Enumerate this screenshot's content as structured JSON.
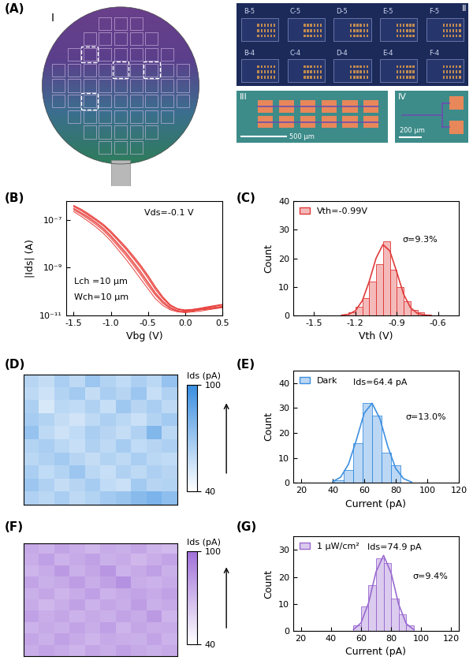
{
  "figure": {
    "panel_labels": [
      "(A)",
      "(B)",
      "(C)",
      "(D)",
      "(E)",
      "(F)",
      "(G)"
    ]
  },
  "photos": {
    "wafer": {
      "label": "I"
    },
    "chips": {
      "label": "II",
      "chip_labels": [
        "B-5",
        "C-5",
        "D-5",
        "E-5",
        "F-5",
        "B-4",
        "C-4",
        "D-4",
        "E-4",
        "F-4"
      ]
    },
    "array": {
      "label": "III",
      "scale_bar": "500 µm"
    },
    "device": {
      "label": "IV",
      "scale_bar": "200 µm"
    }
  },
  "chart_data": [
    {
      "type": "line",
      "log": "y",
      "x": [
        -1.5,
        -1.4,
        -1.3,
        -1.2,
        -1.1,
        -1.0,
        -0.9,
        -0.8,
        -0.7,
        -0.6,
        -0.5,
        -0.4,
        -0.3,
        -0.2,
        -0.1,
        0.0,
        0.1,
        0.2,
        0.3,
        0.4,
        0.5
      ],
      "series": [
        {
          "color": "#e8403c",
          "values": [
            3e-07,
            2e-07,
            1.3e-07,
            8e-08,
            4.5e-08,
            2.2e-08,
            1e-08,
            4.5e-09,
            1.8e-09,
            7e-10,
            2.5e-10,
            9e-11,
            4e-11,
            2.2e-11,
            1.6e-11,
            1.5e-11,
            1.6e-11,
            1.8e-11,
            2e-11,
            2.2e-11,
            2.4e-11
          ]
        },
        {
          "color": "#e8403c",
          "values": [
            4e-07,
            2.8e-07,
            1.8e-07,
            1.1e-07,
            6.5e-08,
            3.4e-08,
            1.6e-08,
            7.5e-09,
            3.2e-09,
            1.3e-09,
            4.8e-10,
            1.6e-10,
            6e-11,
            2.8e-11,
            1.9e-11,
            1.7e-11,
            1.8e-11,
            2e-11,
            2.3e-11,
            2.6e-11,
            2.9e-11
          ]
        },
        {
          "color": "#e8403c",
          "values": [
            2.2e-07,
            1.4e-07,
            8.5e-08,
            5e-08,
            2.7e-08,
            1.3e-08,
            5.5e-09,
            2.3e-09,
            9e-10,
            3.4e-10,
            1.3e-10,
            5e-11,
            2.6e-11,
            1.7e-11,
            1.4e-11,
            1.3e-11,
            1.4e-11,
            1.5e-11,
            1.7e-11,
            1.9e-11,
            2.1e-11
          ]
        },
        {
          "color": "#e8403c",
          "values": [
            3.5e-07,
            2.4e-07,
            1.5e-07,
            9.5e-08,
            5.5e-08,
            2.8e-08,
            1.3e-08,
            6e-09,
            2.5e-09,
            1e-09,
            3.6e-10,
            1.2e-10,
            5e-11,
            2.5e-11,
            1.8e-11,
            1.6e-11,
            1.7e-11,
            1.9e-11,
            2.1e-11,
            2.4e-11,
            2.7e-11
          ]
        },
        {
          "color": "#e8403c",
          "values": [
            2.6e-07,
            1.7e-07,
            1.05e-07,
            6.3e-08,
            3.5e-08,
            1.7e-08,
            7.5e-09,
            3.3e-09,
            1.3e-09,
            5e-10,
            1.8e-10,
            7e-11,
            3.2e-11,
            1.9e-11,
            1.5e-11,
            1.4e-11,
            1.5e-11,
            1.7e-11,
            1.8e-11,
            2e-11,
            2.2e-11
          ]
        },
        {
          "color": "#e8403c",
          "values": [
            3.8e-07,
            2.6e-07,
            1.65e-07,
            1e-07,
            6e-08,
            3.1e-08,
            1.45e-08,
            6.7e-09,
            2.8e-09,
            1.15e-09,
            4.2e-10,
            1.4e-10,
            5.5e-11,
            2.6e-11,
            1.85e-11,
            1.65e-11,
            1.75e-11,
            1.95e-11,
            2.2e-11,
            2.5e-11,
            2.8e-11
          ]
        },
        {
          "color": "#e8403c",
          "values": [
            2.9e-07,
            1.9e-07,
            1.2e-07,
            7.2e-08,
            4e-08,
            2e-08,
            8.8e-09,
            3.9e-09,
            1.55e-09,
            6e-10,
            2.2e-10,
            8e-11,
            3.6e-11,
            2e-11,
            1.55e-11,
            1.45e-11,
            1.55e-11,
            1.75e-11,
            1.9e-11,
            2.1e-11,
            2.3e-11
          ]
        }
      ],
      "xlim": [
        -1.6,
        0.5
      ],
      "ylim": [
        1e-11,
        6e-07
      ],
      "xticks": [
        -1.5,
        -1.0,
        -0.5,
        0.0,
        0.5
      ],
      "yticks": [
        {
          "value": 1e-11,
          "label": "10⁻¹¹"
        },
        {
          "value": 1e-09,
          "label": "10⁻⁹"
        },
        {
          "value": 1e-07,
          "label": "10⁻⁷"
        }
      ],
      "x_label": "Vbg (V)",
      "y_label": "|Ids| (A)",
      "annotations": [
        "Vds=-0.1 V",
        "Lch =10 µm",
        "Wch=10 µm"
      ]
    },
    {
      "type": "histogram",
      "bins": [
        -1.25,
        -1.2,
        -1.15,
        -1.1,
        -1.05,
        -1.0,
        -0.95,
        -0.9,
        -0.85,
        -0.8,
        -0.75,
        -0.7
      ],
      "series": [
        {
          "name": "Vth=-0.99V",
          "color": "#e03a3a",
          "counts": [
            1,
            3,
            6,
            12,
            18,
            26,
            16,
            10,
            5,
            2,
            1
          ]
        }
      ],
      "fit": {
        "x": [
          -1.3,
          -1.25,
          -1.2,
          -1.15,
          -1.1,
          -1.05,
          -1.0,
          -0.95,
          -0.9,
          -0.85,
          -0.8,
          -0.75,
          -0.7,
          -0.65
        ],
        "values": [
          0.07,
          0.39,
          1.6,
          5.1,
          11.8,
          20.0,
          24.8,
          22.6,
          15.2,
          7.4,
          2.7,
          0.7,
          0.14,
          0.02
        ]
      },
      "xlim": [
        -1.65,
        -0.45
      ],
      "ylim": [
        0,
        40
      ],
      "xticks": [
        -1.5,
        -1.2,
        -0.9,
        -0.6
      ],
      "yticks": [
        0,
        10,
        20,
        30,
        40
      ],
      "x_label": "Vth (V)",
      "y_label": "Count",
      "legend": "upper left",
      "annotations": [
        "σ=9.3%"
      ]
    },
    {
      "type": "heatmap",
      "color": "#3a8ee0",
      "tick_labels": false,
      "cells": [
        [
          62,
          58,
          66,
          60,
          70,
          63,
          59,
          65,
          61,
          72
        ],
        [
          60,
          55,
          63,
          68,
          58,
          66,
          62,
          70,
          57,
          64
        ],
        [
          65,
          52,
          61,
          59,
          64,
          57,
          69,
          62,
          66,
          60
        ],
        [
          67,
          63,
          58,
          54,
          60,
          65,
          61,
          56,
          63,
          68
        ],
        [
          72,
          60,
          55,
          59,
          66,
          62,
          58,
          64,
          78,
          61
        ],
        [
          63,
          66,
          61,
          57,
          64,
          60,
          67,
          59,
          62,
          65
        ],
        [
          61,
          64,
          68,
          62,
          58,
          63,
          60,
          66,
          61,
          59
        ],
        [
          66,
          59,
          63,
          70,
          61,
          57,
          64,
          60,
          65,
          62
        ],
        [
          70,
          64,
          58,
          62,
          67,
          59,
          56,
          68,
          62,
          63
        ],
        [
          64,
          61,
          66,
          60,
          63,
          68,
          71,
          76,
          80,
          74
        ]
      ],
      "colorbar": {
        "label": "Ids (pA)",
        "range": [
          40,
          100
        ],
        "ticks": [
          40,
          100
        ]
      }
    },
    {
      "type": "histogram",
      "bins": [
        41,
        47,
        53,
        59,
        65,
        71,
        77,
        83
      ],
      "series": [
        {
          "name": "Dark",
          "color": "#3d8fe0",
          "counts": [
            1,
            5,
            16,
            32,
            27,
            12,
            7
          ]
        }
      ],
      "fit": {
        "x": [
          40,
          45,
          50,
          55,
          60,
          65,
          70,
          75,
          80,
          85,
          90
        ],
        "values": [
          0.47,
          2.2,
          7.4,
          17.1,
          27.9,
          31.9,
          25.6,
          14.4,
          5.7,
          1.6,
          0.3
        ]
      },
      "xlim": [
        15,
        120
      ],
      "ylim": [
        0,
        45
      ],
      "xticks": [
        20,
        40,
        60,
        80,
        100,
        120
      ],
      "yticks": [
        0,
        10,
        20,
        30,
        40
      ],
      "x_label": "Current (pA)",
      "y_label": "Count",
      "legend": "upper left",
      "annotations": [
        "Ids=64.4 pA",
        "σ=13.0%"
      ]
    },
    {
      "type": "heatmap",
      "color": "#a070d8",
      "tick_labels": false,
      "cells": [
        [
          76,
          72,
          78,
          74,
          70,
          75,
          73,
          77,
          71,
          69
        ],
        [
          74,
          80,
          72,
          76,
          79,
          73,
          75,
          70,
          74,
          78
        ],
        [
          71,
          75,
          82,
          73,
          77,
          84,
          72,
          76,
          80,
          73
        ],
        [
          78,
          73,
          76,
          81,
          74,
          79,
          86,
          74,
          72,
          75
        ],
        [
          73,
          77,
          71,
          75,
          80,
          72,
          76,
          78,
          75,
          79
        ],
        [
          75,
          70,
          74,
          79,
          72,
          77,
          74,
          81,
          73,
          76
        ],
        [
          79,
          74,
          77,
          72,
          76,
          73,
          78,
          75,
          82,
          71
        ],
        [
          72,
          76,
          73,
          78,
          74,
          80,
          71,
          77,
          74,
          75
        ],
        [
          77,
          73,
          79,
          75,
          71,
          76,
          74,
          73,
          78,
          72
        ],
        [
          74,
          78,
          75,
          71,
          77,
          74,
          79,
          76,
          73,
          76
        ]
      ],
      "colorbar": {
        "label": "Ids (pA)",
        "range": [
          40,
          100
        ],
        "ticks": [
          40,
          100
        ]
      }
    },
    {
      "type": "histogram",
      "bins": [
        55,
        60,
        65,
        70,
        75,
        80,
        85,
        90,
        95
      ],
      "series": [
        {
          "name": "1 μW/cm²",
          "color": "#9a6ad0",
          "counts": [
            2,
            9,
            17,
            27,
            25,
            12,
            6,
            2
          ]
        }
      ],
      "fit": {
        "x": [
          55,
          60,
          65,
          70,
          75,
          80,
          85,
          90,
          95
        ],
        "values": [
          0.49,
          2.9,
          10.3,
          21.9,
          28.0,
          21.5,
          9.9,
          2.7,
          0.45
        ]
      },
      "xlim": [
        15,
        125
      ],
      "ylim": [
        0,
        35
      ],
      "xticks": [
        20,
        40,
        60,
        80,
        100,
        120
      ],
      "yticks": [
        0,
        10,
        20,
        30
      ],
      "x_label": "Current (pA)",
      "y_label": "Count",
      "legend": "upper left",
      "annotations": [
        "Ids=74.9 pA",
        "σ=9.4%"
      ]
    }
  ]
}
